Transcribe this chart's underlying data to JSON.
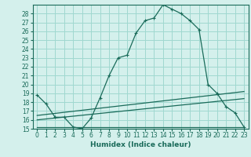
{
  "xlabel": "Humidex (Indice chaleur)",
  "bg_color": "#d4f0ec",
  "grid_color": "#a0d8d0",
  "line_color": "#1a6b5a",
  "xlim": [
    -0.5,
    23.5
  ],
  "ylim": [
    15,
    29
  ],
  "xticks": [
    0,
    1,
    2,
    3,
    4,
    5,
    6,
    7,
    8,
    9,
    10,
    11,
    12,
    13,
    14,
    15,
    16,
    17,
    18,
    19,
    20,
    21,
    22,
    23
  ],
  "yticks": [
    15,
    16,
    17,
    18,
    19,
    20,
    21,
    22,
    23,
    24,
    25,
    26,
    27,
    28
  ],
  "main_x": [
    0,
    1,
    2,
    3,
    4,
    5,
    6,
    7,
    8,
    9,
    10,
    11,
    12,
    13,
    14,
    15,
    16,
    17,
    18,
    19,
    20,
    21,
    22,
    23
  ],
  "main_y": [
    18.8,
    17.8,
    16.3,
    16.3,
    15.2,
    15.0,
    16.2,
    18.5,
    21.0,
    23.0,
    23.3,
    25.8,
    27.2,
    27.5,
    29.0,
    28.5,
    28.0,
    27.2,
    26.2,
    20.0,
    19.0,
    17.5,
    16.8,
    15.2
  ],
  "line2_x": [
    0,
    23
  ],
  "line2_y": [
    16.5,
    19.2
  ],
  "line3_x": [
    0,
    23
  ],
  "line3_y": [
    16.0,
    18.4
  ],
  "line4_x": [
    0,
    23
  ],
  "line4_y": [
    15.2,
    15.2
  ]
}
